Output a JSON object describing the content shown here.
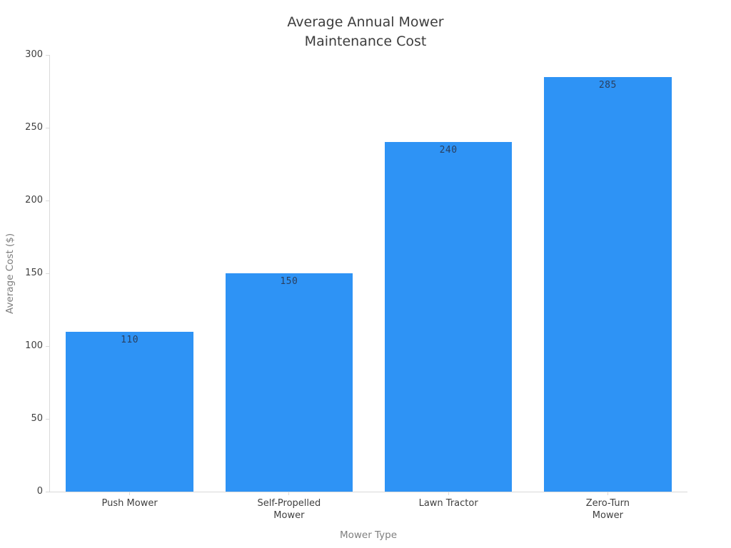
{
  "chart_data": {
    "type": "bar",
    "title": "Average Annual Mower\nMaintenance Cost",
    "title_lines": [
      "Average Annual Mower",
      "Maintenance Cost"
    ],
    "categories": [
      "Push Mower",
      "Self-Propelled\nMower",
      "Lawn Tractor",
      "Zero-Turn\nMower"
    ],
    "values": [
      110,
      150,
      240,
      285
    ],
    "bar_labels": [
      "110",
      "150",
      "240",
      "285"
    ],
    "xlabel": "Mower Type",
    "ylabel": "Average Cost ($)",
    "ylim": [
      0,
      300
    ],
    "yticks": [
      0,
      50,
      100,
      150,
      200,
      250,
      300
    ],
    "bar_width_fraction": 0.8,
    "grid": false,
    "legend": null,
    "colors": {
      "bar_fill": "#2e93f5",
      "axis_line": "#d9d9d9",
      "tick_label": "#3f3f3f",
      "axis_title": "#7f7f7f",
      "chart_title": "#3d3d3d",
      "bar_value_label": "#2a3f5f",
      "background": "#ffffff"
    }
  }
}
